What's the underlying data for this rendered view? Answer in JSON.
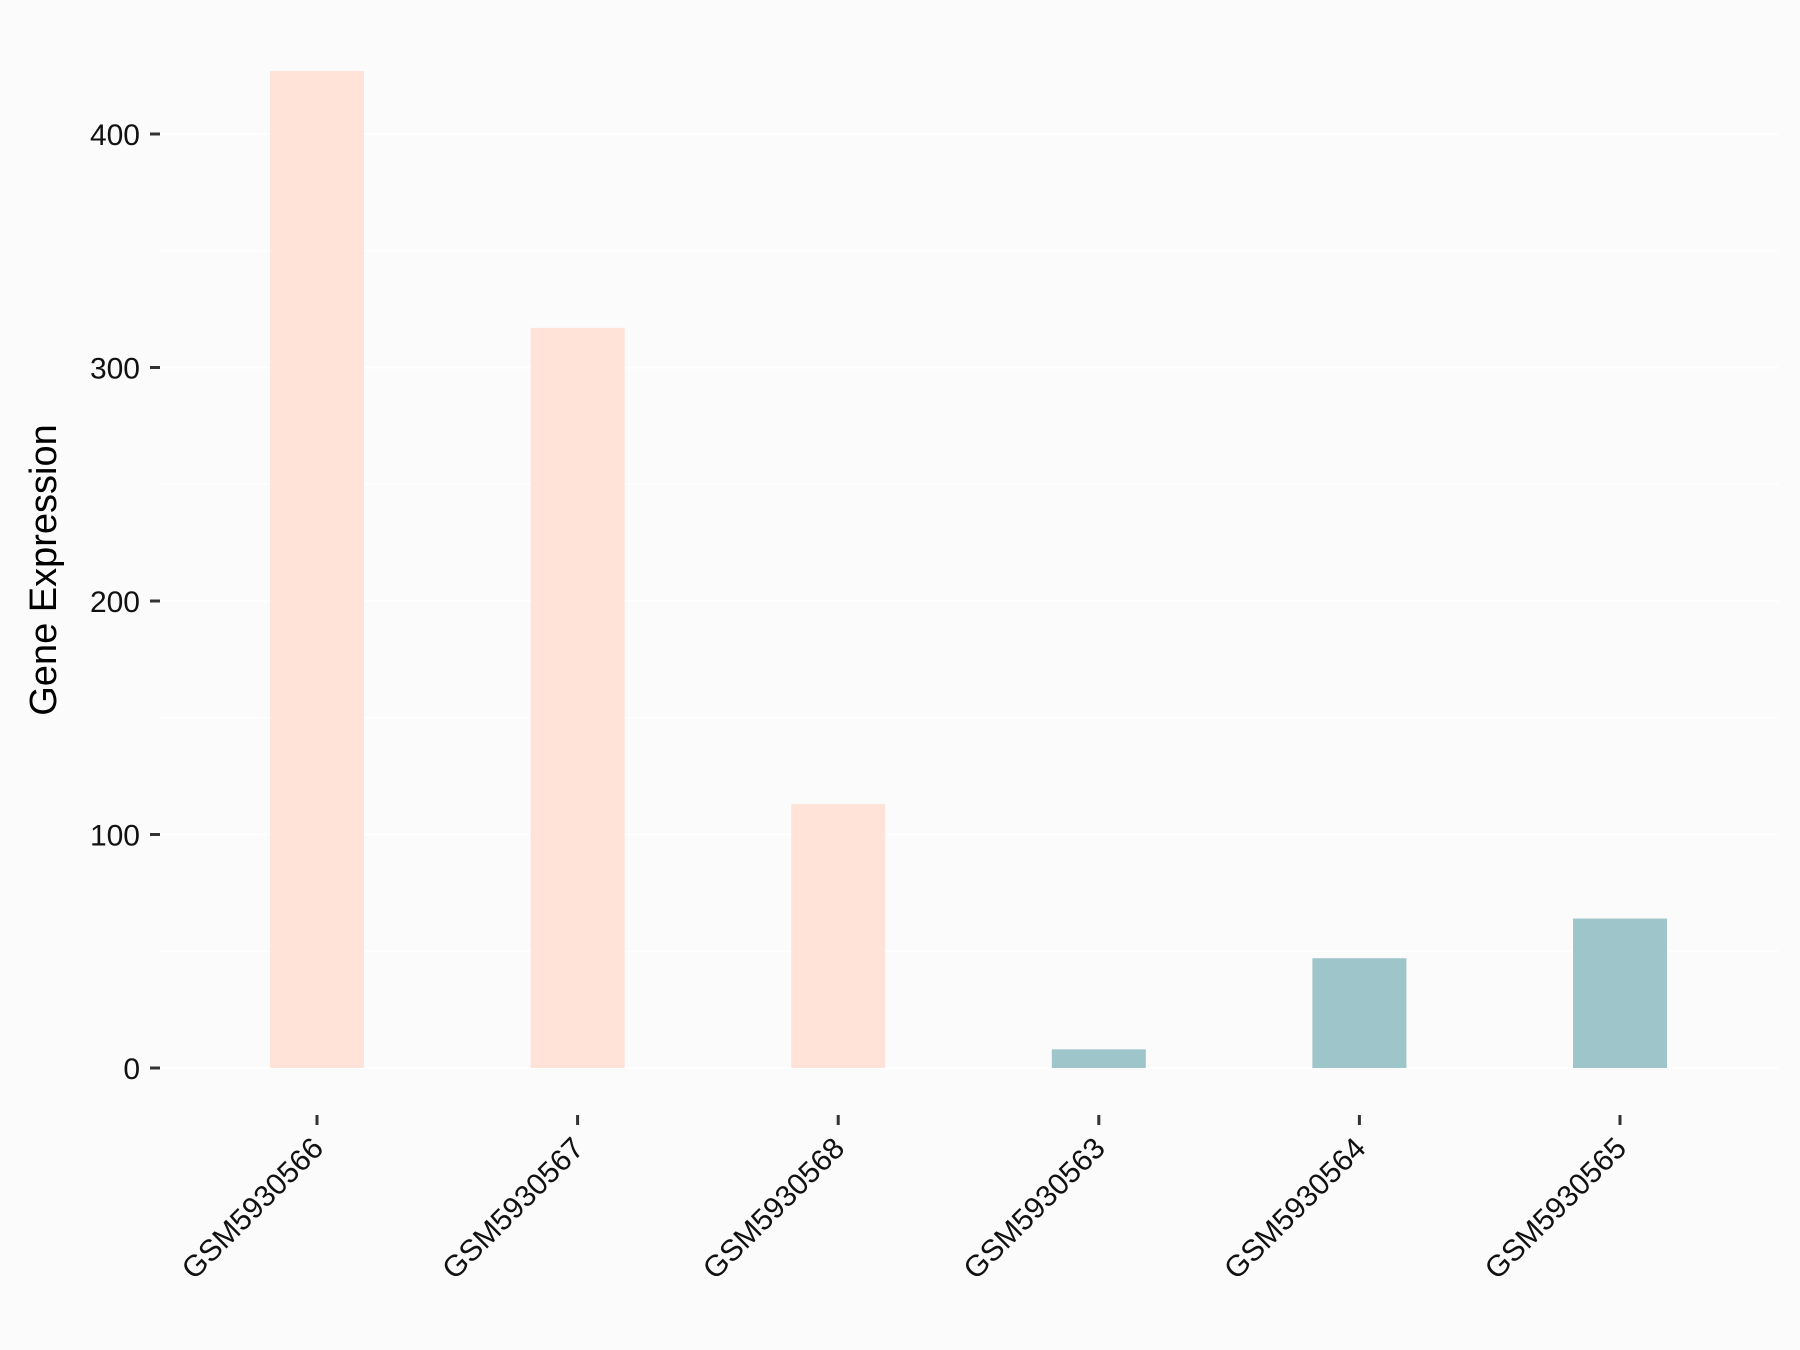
{
  "chart_data": {
    "type": "bar",
    "title": "",
    "xlabel": "",
    "ylabel": "Gene Expression",
    "categories": [
      "GSM5930566",
      "GSM5930567",
      "GSM5930568",
      "GSM5930563",
      "GSM5930564",
      "GSM5930565"
    ],
    "values": [
      427,
      317,
      113,
      8,
      47,
      64
    ],
    "bar_colors": [
      "#ffe2d8",
      "#ffe2d8",
      "#ffe2d8",
      "#9ec5c9",
      "#9ec5c9",
      "#9ec5c9"
    ],
    "ylim": [
      -20,
      440
    ],
    "yticks": [
      0,
      100,
      200,
      300,
      400
    ],
    "ytick_labels": [
      "0",
      "100",
      "200",
      "300",
      "400"
    ],
    "grid": true,
    "legend": "none",
    "background": "#fbfbfb"
  }
}
